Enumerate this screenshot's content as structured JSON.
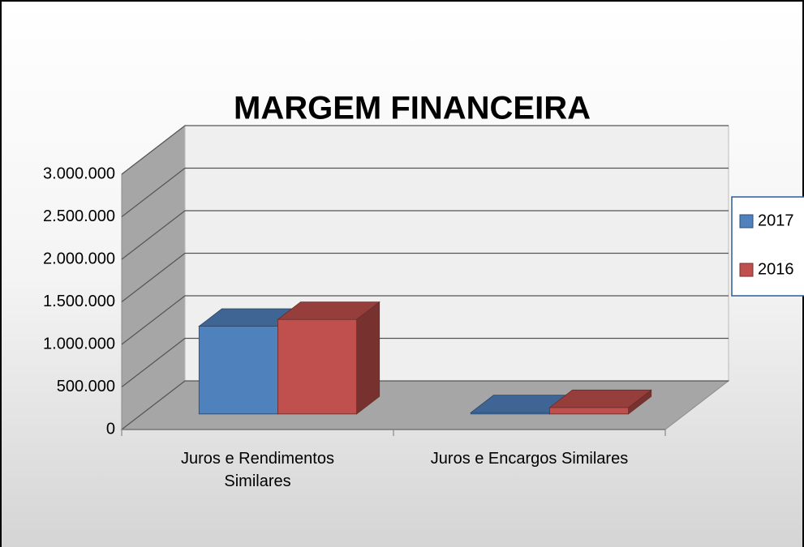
{
  "chart_data": {
    "type": "bar",
    "title": "MARGEM FINANCEIRA",
    "categories": [
      "Juros e Rendimentos Similares",
      "Juros e Encargos Similares"
    ],
    "series": [
      {
        "name": "2017",
        "color": "#4f81bd",
        "values": [
          1030000,
          15000
        ]
      },
      {
        "name": "2016",
        "color": "#c0504d",
        "values": [
          1110000,
          75000
        ]
      }
    ],
    "ylim": [
      0,
      3000000
    ],
    "yticks": [
      0,
      {
        "value": 500000,
        "label": "500.000"
      },
      {
        "value": 1000000,
        "label": "1.000.000"
      },
      {
        "value": 1500000,
        "label": "1.500.000"
      },
      {
        "value": 2000000,
        "label": "2.000.000"
      },
      {
        "value": 2500000,
        "label": "2.500.000"
      },
      {
        "value": 3000000,
        "label": "3.000.000"
      }
    ],
    "grid": true,
    "legend": "right"
  }
}
